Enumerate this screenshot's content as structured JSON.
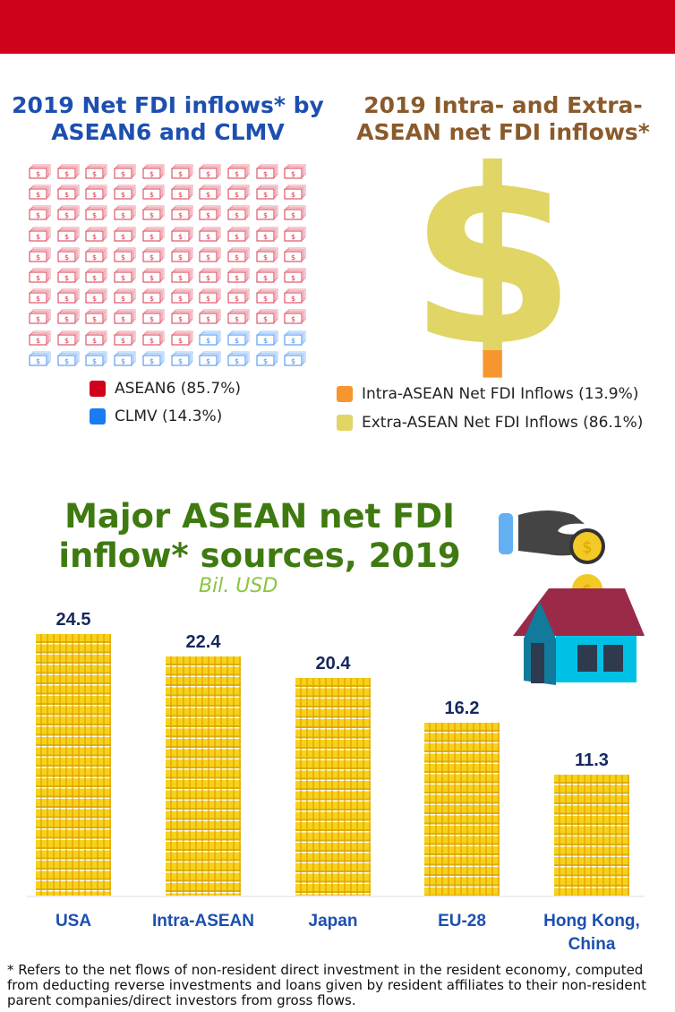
{
  "colors": {
    "header": "#d0021b",
    "asean6": "#d9344a",
    "clmv": "#3d8ef0",
    "intra": "#f7962e",
    "extra": "#e0d565",
    "bar": "#f6d21a"
  },
  "left_panel": {
    "title": "2019 Net FDI inflows* by ASEAN6 and CLMV",
    "legend": [
      {
        "label": "ASEAN6 (85.7%)"
      },
      {
        "label": "CLMV (14.3%)"
      }
    ]
  },
  "right_panel": {
    "title": "2019 Intra- and Extra-ASEAN net FDI inflows*",
    "legend": [
      {
        "label": "Intra-ASEAN Net FDI Inflows (13.9%)"
      },
      {
        "label": "Extra-ASEAN Net FDI Inflows (86.1%)"
      }
    ]
  },
  "bottom": {
    "title": "Major ASEAN net FDI inflow* sources, 2019",
    "unit": "Bil. USD"
  },
  "footnote": "* Refers to the net flows of non-resident direct investment in the resident economy, computed from deducting reverse investments and loans given by resident affiliates to their non-resident parent companies/direct investors from gross flows.",
  "chart_data": [
    {
      "type": "waffle",
      "title": "2019 Net FDI inflows* by ASEAN6 and CLMV",
      "categories": [
        "ASEAN6",
        "CLMV"
      ],
      "values": [
        85.7,
        14.3
      ],
      "icons": [
        86,
        14
      ],
      "icon": "money-bill-icon"
    },
    {
      "type": "pie",
      "title": "2019 Intra- and Extra-ASEAN net FDI inflows*",
      "categories": [
        "Intra-ASEAN Net FDI Inflows",
        "Extra-ASEAN Net FDI Inflows"
      ],
      "values": [
        13.9,
        86.1
      ],
      "icon": "dollar-sign-icon"
    },
    {
      "type": "bar",
      "title": "Major ASEAN net FDI inflow* sources, 2019",
      "ylabel": "Bil. USD",
      "categories": [
        "USA",
        "Intra-ASEAN",
        "Japan",
        "EU-28",
        "Hong Kong, China"
      ],
      "values": [
        24.5,
        22.4,
        20.4,
        16.2,
        11.3
      ],
      "labels": [
        "24.5",
        "22.4",
        "20.4",
        "16.2",
        "11.3"
      ],
      "ylim": [
        0,
        25
      ]
    }
  ]
}
